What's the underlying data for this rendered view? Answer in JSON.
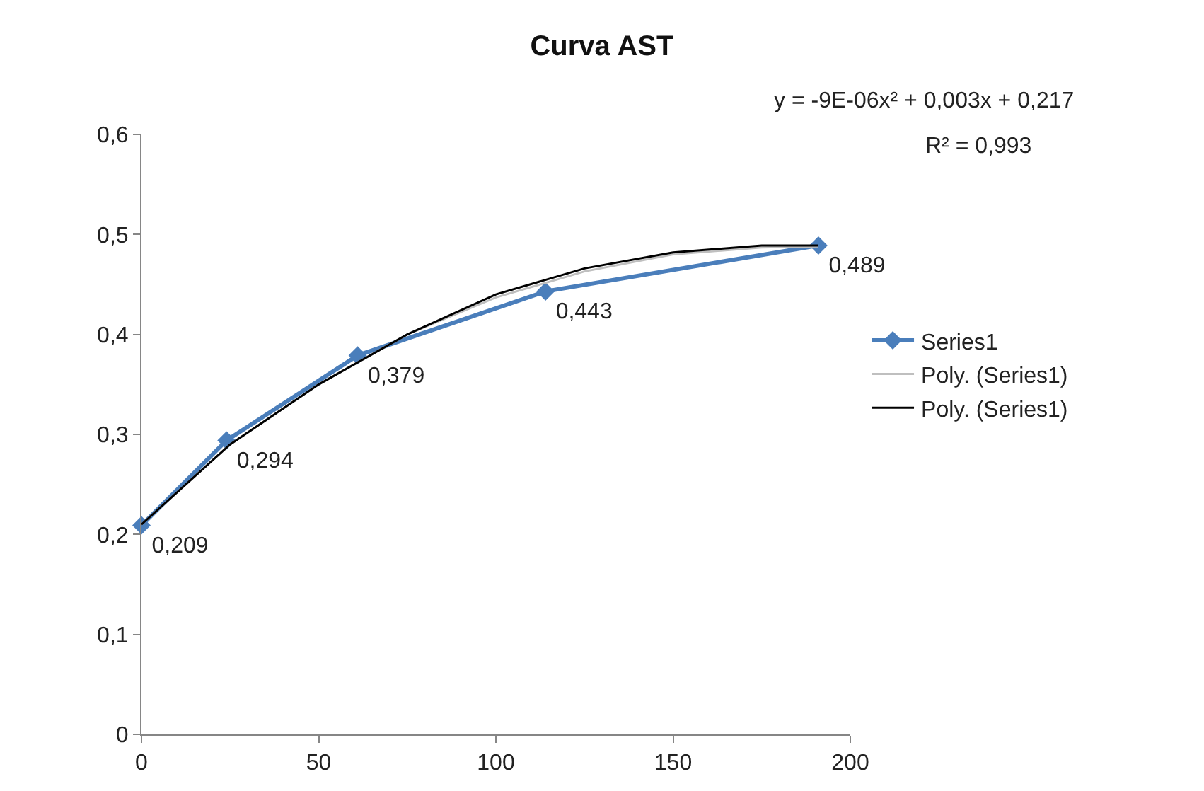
{
  "chart_data": {
    "type": "line",
    "title": "Curva AST",
    "series": [
      {
        "name": "Series1",
        "color": "#4a7ebb",
        "x": [
          0,
          24,
          61,
          114,
          191
        ],
        "values": [
          0.209,
          0.294,
          0.379,
          0.443,
          0.489
        ],
        "value_labels": [
          "0,209",
          "0,294",
          "0,379",
          "0,443",
          "0,489"
        ],
        "marker": "diamond"
      },
      {
        "name": "Poly. (Series1)",
        "color": "#bfbfbf",
        "x": [
          0,
          25,
          50,
          75,
          100,
          125,
          150,
          175,
          191
        ],
        "values": [
          0.21,
          0.29,
          0.35,
          0.4,
          0.437,
          0.463,
          0.48,
          0.487,
          0.488
        ],
        "marker": "none"
      },
      {
        "name": "Poly. (Series1)",
        "color": "#000000",
        "x": [
          0,
          25,
          50,
          75,
          100,
          125,
          150,
          175,
          191
        ],
        "values": [
          0.21,
          0.29,
          0.35,
          0.4,
          0.44,
          0.466,
          0.482,
          0.489,
          0.489
        ],
        "marker": "none"
      }
    ],
    "xlim": [
      0,
      200
    ],
    "xticks": [
      0,
      50,
      100,
      150,
      200
    ],
    "ylim": [
      0,
      0.6
    ],
    "yticks": [
      0,
      {
        "value": 0.1,
        "label": "0,1"
      },
      {
        "value": 0.2,
        "label": "0,2"
      },
      {
        "value": 0.3,
        "label": "0,3"
      },
      {
        "value": 0.4,
        "label": "0,4"
      },
      {
        "value": 0.5,
        "label": "0,5"
      },
      {
        "value": 0.6,
        "label": "0,6"
      }
    ],
    "legend": "right",
    "line_style": "solid",
    "annotations": [
      "y = -9E-06x² + 0,003x + 0,217",
      "R² = 0,993"
    ]
  }
}
